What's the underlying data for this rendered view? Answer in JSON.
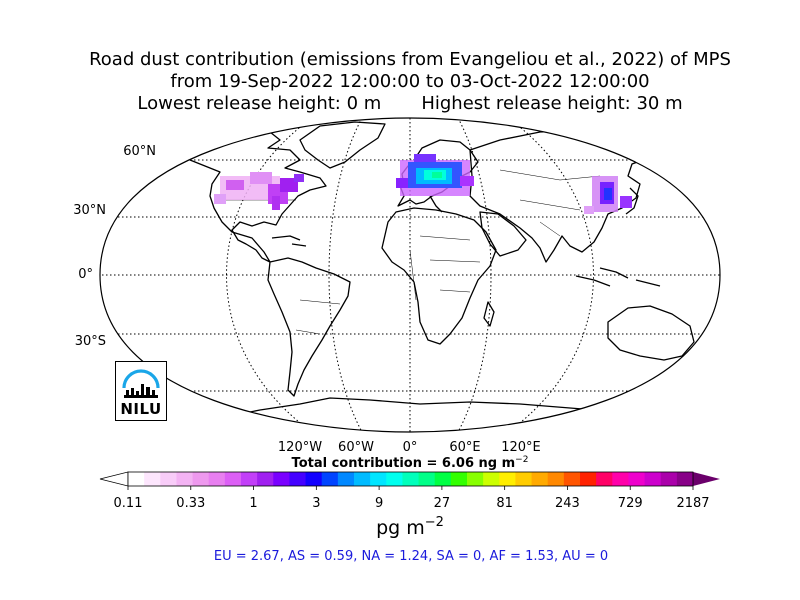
{
  "title": {
    "line1": "Road dust contribution (emissions from Evangeliou et al., 2022) of MPS",
    "line2": "from 19-Sep-2022 12:00:00 to 03-Oct-2022 12:00:00",
    "line3": "Lowest release height: 0 m       Highest release height: 30 m"
  },
  "map": {
    "projection": "Robinson (world)",
    "lat_labels": [
      "60°N",
      "30°N",
      "0°",
      "30°S"
    ],
    "lon_labels": [
      "120°W",
      "60°W",
      "0°",
      "60°E",
      "120°E"
    ],
    "coastline_color": "#000000",
    "highlight_regions": [
      "North America",
      "Europe",
      "East Asia"
    ]
  },
  "total_label": "Total contribution = 6.06 ng m",
  "total_label_exp": "−2",
  "colorbar": {
    "tick_labels": [
      "0.11",
      "0.33",
      "1",
      "3",
      "9",
      "27",
      "81",
      "243",
      "729",
      "2187"
    ],
    "unit_label": "pg m",
    "unit_exp": "−2",
    "colors": [
      "#ffffff",
      "#fde6fd",
      "#f8ccf8",
      "#f3b3f3",
      "#ee99ee",
      "#e87ff0",
      "#dc5ff5",
      "#c23ff8",
      "#a020f0",
      "#7a00ff",
      "#4400ff",
      "#1200ff",
      "#0044ff",
      "#0088ff",
      "#00bbff",
      "#00e5ff",
      "#00ffee",
      "#00ffbb",
      "#00ff88",
      "#00ff44",
      "#33ff00",
      "#88ff00",
      "#ccff00",
      "#ffee00",
      "#ffcc00",
      "#ffaa00",
      "#ff8800",
      "#ff5500",
      "#ff2200",
      "#ff0066",
      "#ff00aa",
      "#ee00cc",
      "#cc00cc",
      "#aa00aa",
      "#880088"
    ],
    "over_color": "#6b006b",
    "under_color": "#ffffff"
  },
  "logo": {
    "text": "NILU"
  },
  "regional_summary": "EU = 2.67,  AS = 0.59,  NA = 1.24,  SA = 0,  AF = 1.53,  AU = 0"
}
